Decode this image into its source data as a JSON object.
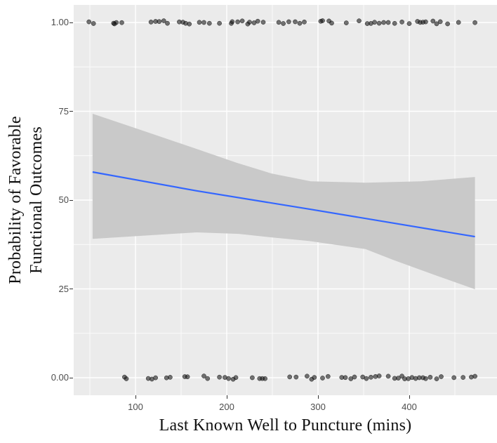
{
  "figure": {
    "background": "#ffffff",
    "panel_background": "#ebebeb",
    "gridline_color": "#ffffff",
    "tick_mark_color": "#333333",
    "tick_label_color": "#4d4d4d",
    "axis_title_color": "#111111"
  },
  "chart_data": {
    "type": "scatter",
    "title": "",
    "xlabel": "Last Known Well to Puncture (mins)",
    "ylabel": "Probability of Favorable Functional Outcomes",
    "ylabel_lines": [
      "Probability of Favorable",
      "Functional Outcomes"
    ],
    "xlim": [
      32,
      496
    ],
    "ylim": [
      -5,
      105
    ],
    "grid": true,
    "legend_position": "none",
    "x_ticks": [
      {
        "value": 100,
        "label": "100"
      },
      {
        "value": 200,
        "label": "200"
      },
      {
        "value": 300,
        "label": "300"
      },
      {
        "value": 400,
        "label": "400"
      }
    ],
    "y_ticks": [
      {
        "value": 100,
        "label": "1.00"
      },
      {
        "value": 75,
        "label": "75"
      },
      {
        "value": 50,
        "label": "50"
      },
      {
        "value": 25,
        "label": "25"
      },
      {
        "value": 0,
        "label": "0.00"
      }
    ],
    "x_minor_ticks": [
      50,
      150,
      250,
      350,
      450
    ],
    "y_minor_ticks": [
      12.5,
      37.5,
      62.5,
      87.5
    ],
    "series": [
      {
        "name": "favorable-outcome-points",
        "type": "points",
        "y": 100,
        "color": "#111111",
        "opacity": 0.58,
        "x": [
          49,
          54,
          76,
          77,
          79,
          85,
          117,
          122,
          126,
          131,
          135,
          148,
          152,
          155,
          159,
          170,
          175,
          181,
          192,
          205,
          206,
          212,
          217,
          223,
          225,
          230,
          234,
          240,
          257,
          262,
          268,
          275,
          280,
          285,
          303,
          305,
          312,
          315,
          331,
          345,
          354,
          358,
          362,
          367,
          372,
          377,
          384,
          392,
          400,
          409,
          412,
          415,
          418,
          426,
          430,
          434,
          442,
          454,
          472
        ]
      },
      {
        "name": "unfavorable-outcome-points",
        "type": "points",
        "y": 0,
        "color": "#111111",
        "opacity": 0.58,
        "x": [
          88,
          90,
          114,
          118,
          122,
          134,
          138,
          154,
          157,
          175,
          179,
          192,
          198,
          202,
          207,
          210,
          228,
          236,
          239,
          242,
          269,
          276,
          288,
          293,
          296,
          305,
          311,
          326,
          330,
          336,
          340,
          349,
          353,
          358,
          363,
          367,
          377,
          384,
          388,
          392,
          395,
          399,
          403,
          407,
          411,
          415,
          418,
          423,
          430,
          435,
          449,
          459,
          468,
          472
        ]
      },
      {
        "name": "logistic-fit-line",
        "type": "line",
        "color": "#3366ff",
        "width": 2.2,
        "points": [
          [
            53,
            57.9
          ],
          [
            167,
            52.6
          ],
          [
            292,
            47.4
          ],
          [
            472,
            39.7
          ]
        ]
      },
      {
        "name": "confidence-band",
        "type": "band",
        "color": "#c9c9c9",
        "upper": [
          [
            53,
            74.3
          ],
          [
            105,
            69.8
          ],
          [
            167,
            64.4
          ],
          [
            211,
            60.5
          ],
          [
            249,
            57.5
          ],
          [
            292,
            55.3
          ],
          [
            352,
            54.9
          ],
          [
            413,
            55.3
          ],
          [
            472,
            56.5
          ]
        ],
        "lower": [
          [
            53,
            39.1
          ],
          [
            167,
            40.9
          ],
          [
            213,
            40.5
          ],
          [
            249,
            39.5
          ],
          [
            290,
            38.5
          ],
          [
            352,
            36.2
          ],
          [
            382,
            33.2
          ],
          [
            428,
            28.9
          ],
          [
            472,
            24.9
          ]
        ]
      }
    ]
  }
}
